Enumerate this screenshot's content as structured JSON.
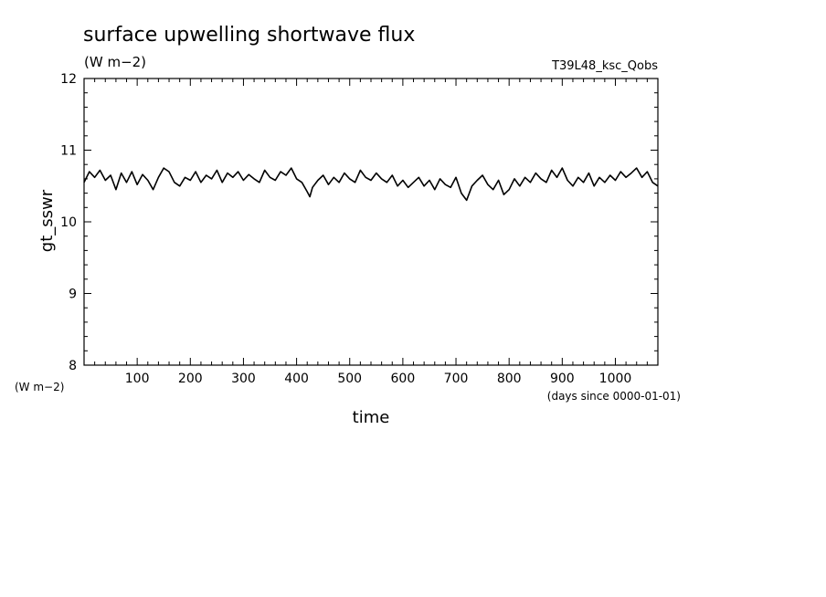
{
  "chart_data": {
    "type": "line",
    "title": "surface upwelling shortwave flux",
    "units": "(W m−2)",
    "run_label": "T39L48_ksc_Qobs",
    "ylabel": "gt_sswr",
    "yunits_label": "(W m−2)",
    "xlabel": "time",
    "xunits_label": "(days since 0000-01-01)",
    "xlim": [
      0,
      1080
    ],
    "ylim": [
      8,
      12
    ],
    "x_ticks": [
      100,
      200,
      300,
      400,
      500,
      600,
      700,
      800,
      900,
      1000
    ],
    "x_tick_labels": [
      "100",
      "200",
      "300",
      "400",
      "500",
      "600",
      "700",
      "800",
      "900",
      "1000"
    ],
    "y_ticks": [
      8,
      9,
      10,
      11,
      12
    ],
    "y_tick_labels": [
      "8",
      "9",
      "10",
      "11",
      "12"
    ],
    "grid": false,
    "series": [
      {
        "x": [
          0,
          10,
          20,
          30,
          40,
          50,
          60,
          70,
          80,
          90,
          100,
          110,
          120,
          130,
          140,
          150,
          160,
          170,
          180,
          190,
          200,
          210,
          220,
          230,
          240,
          250,
          260,
          270,
          280,
          290,
          300,
          310,
          320,
          330,
          340,
          350,
          360,
          370,
          380,
          390,
          400,
          410,
          420,
          425,
          430,
          440,
          450,
          460,
          470,
          480,
          490,
          500,
          510,
          520,
          530,
          540,
          550,
          560,
          570,
          580,
          590,
          600,
          610,
          620,
          630,
          640,
          650,
          660,
          670,
          680,
          690,
          700,
          710,
          720,
          730,
          740,
          750,
          760,
          770,
          780,
          790,
          800,
          810,
          820,
          830,
          840,
          850,
          860,
          870,
          880,
          890,
          900,
          910,
          920,
          930,
          940,
          950,
          960,
          970,
          980,
          990,
          1000,
          1010,
          1020,
          1030,
          1040,
          1050,
          1060,
          1070,
          1080
        ],
        "y": [
          10.55,
          10.7,
          10.62,
          10.72,
          10.58,
          10.65,
          10.45,
          10.68,
          10.55,
          10.7,
          10.52,
          10.66,
          10.58,
          10.45,
          10.62,
          10.75,
          10.7,
          10.55,
          10.5,
          10.62,
          10.58,
          10.7,
          10.55,
          10.65,
          10.6,
          10.72,
          10.55,
          10.68,
          10.62,
          10.7,
          10.58,
          10.66,
          10.6,
          10.55,
          10.72,
          10.62,
          10.58,
          10.7,
          10.65,
          10.75,
          10.6,
          10.55,
          10.42,
          10.35,
          10.48,
          10.58,
          10.65,
          10.52,
          10.62,
          10.55,
          10.68,
          10.6,
          10.55,
          10.72,
          10.62,
          10.58,
          10.68,
          10.6,
          10.55,
          10.65,
          10.5,
          10.58,
          10.48,
          10.55,
          10.62,
          10.5,
          10.58,
          10.45,
          10.6,
          10.52,
          10.48,
          10.62,
          10.4,
          10.3,
          10.5,
          10.58,
          10.65,
          10.52,
          10.45,
          10.58,
          10.38,
          10.45,
          10.6,
          10.5,
          10.62,
          10.55,
          10.68,
          10.6,
          10.55,
          10.72,
          10.62,
          10.75,
          10.58,
          10.5,
          10.62,
          10.55,
          10.68,
          10.5,
          10.62,
          10.55,
          10.65,
          10.58,
          10.7,
          10.62,
          10.68,
          10.75,
          10.62,
          10.7,
          10.55,
          10.5
        ]
      }
    ]
  }
}
